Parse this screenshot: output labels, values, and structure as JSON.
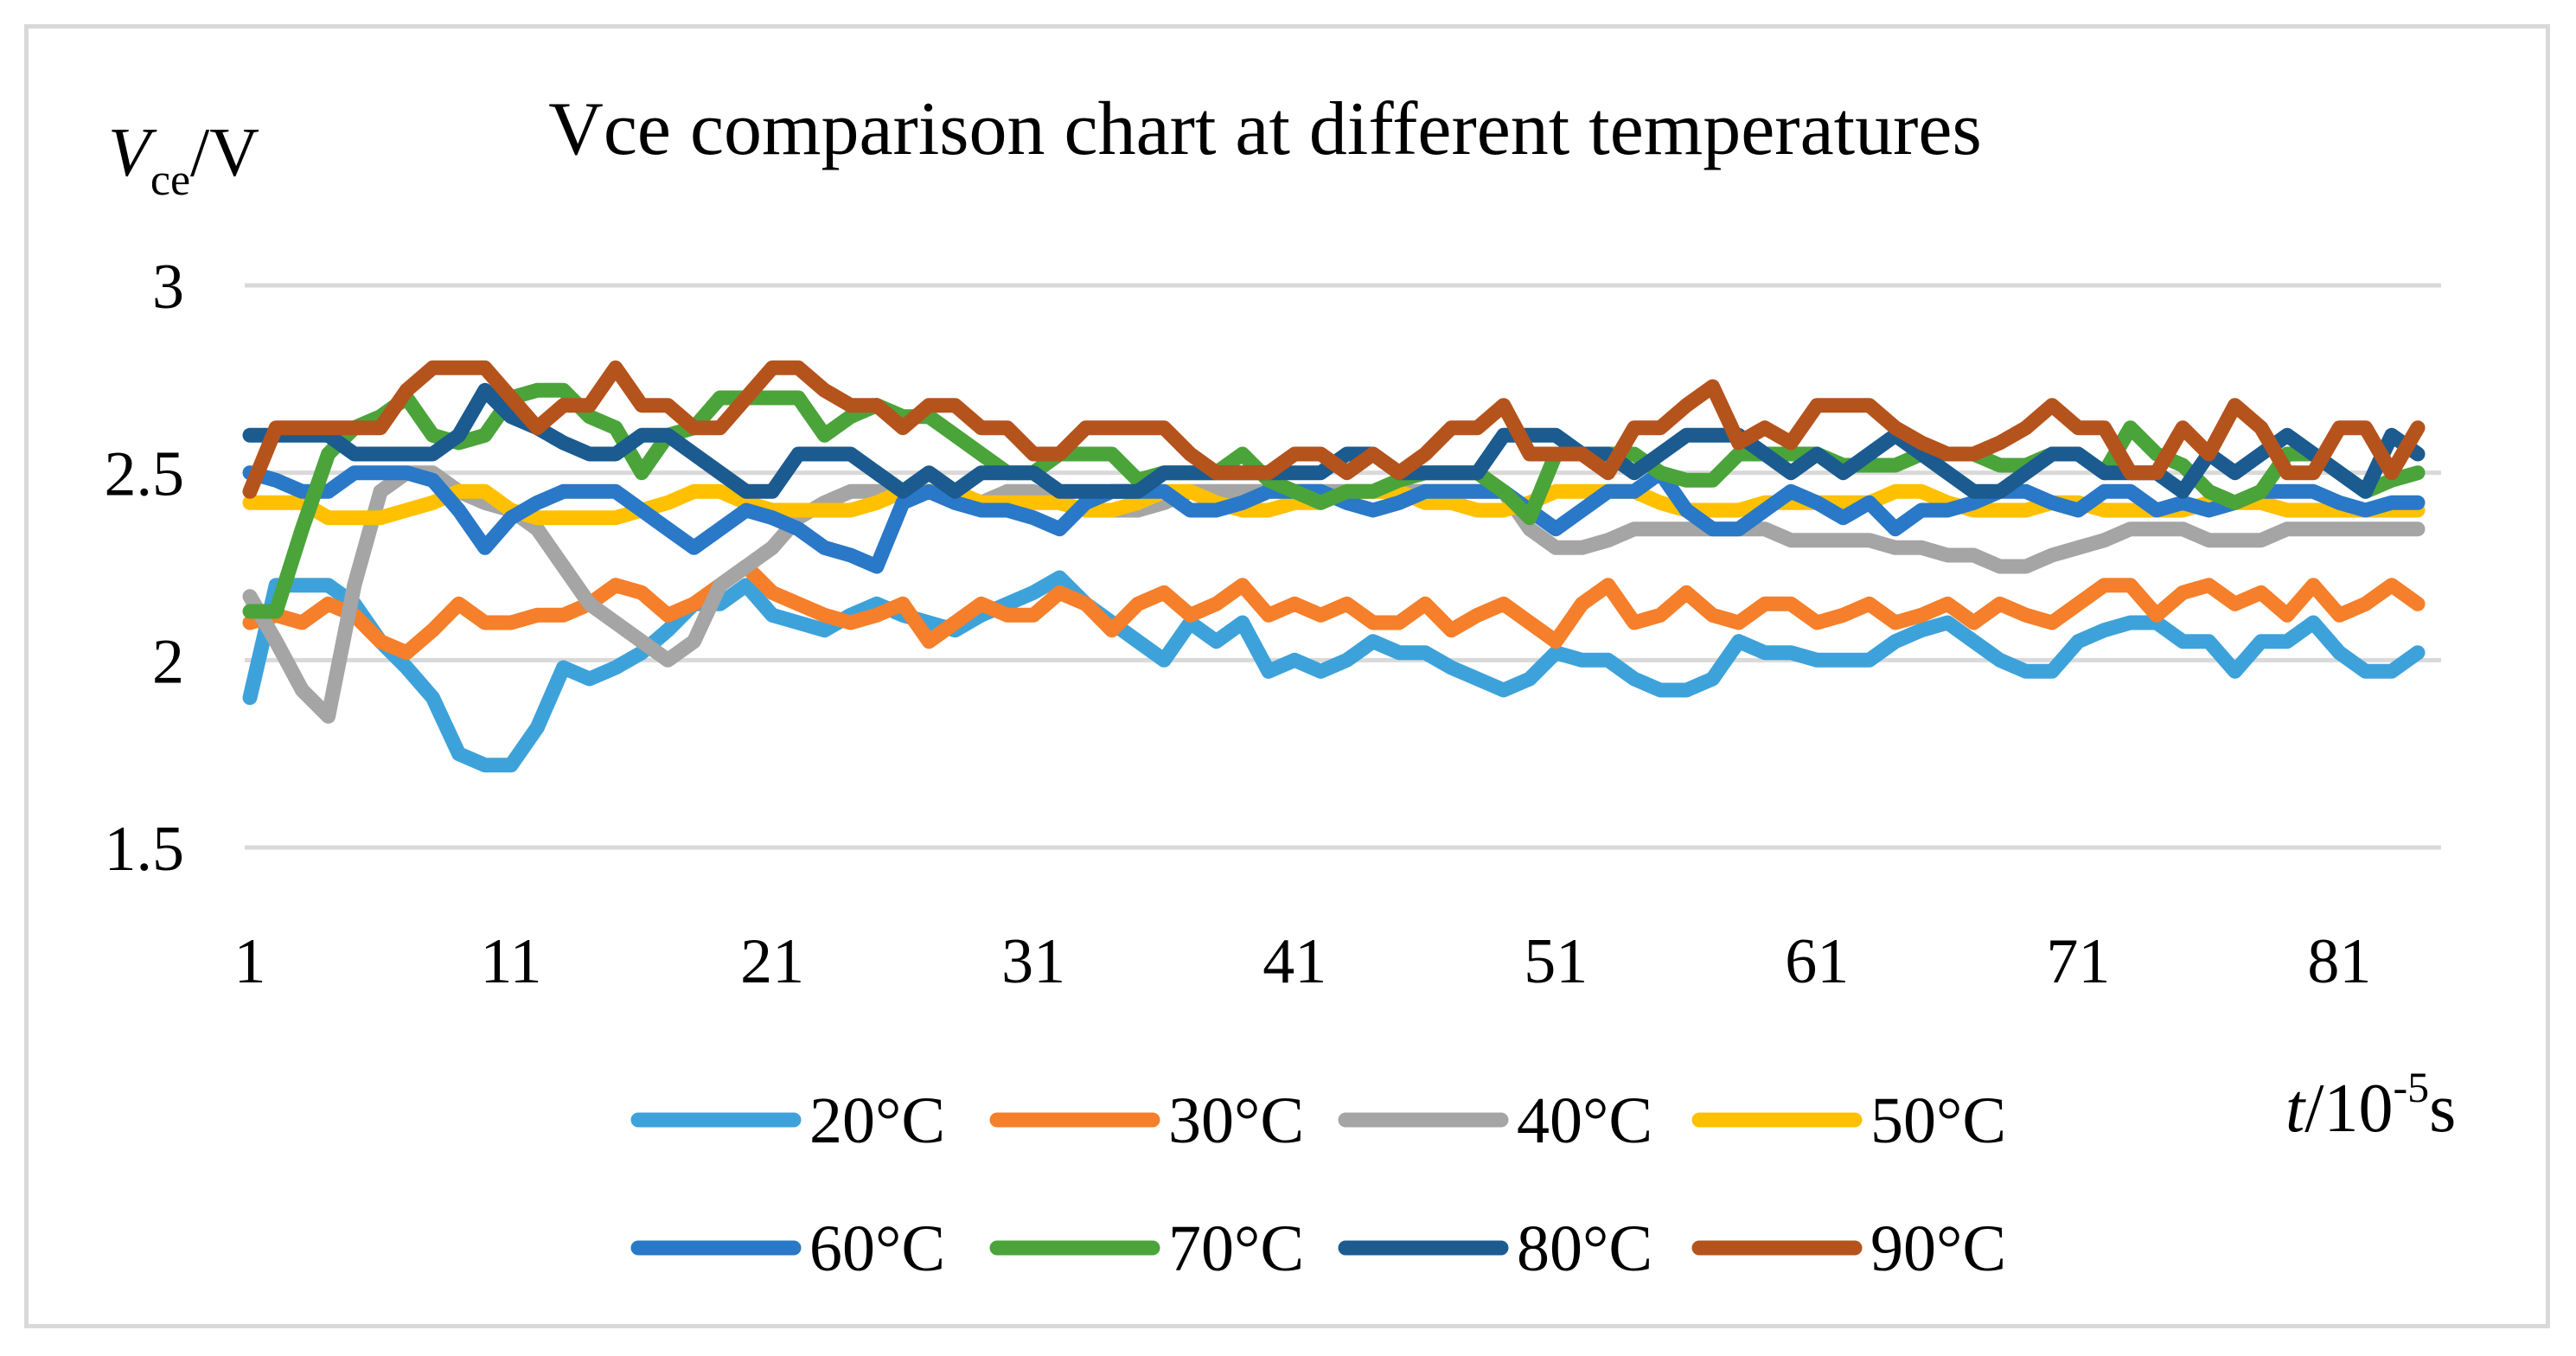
{
  "chart_data": {
    "type": "line",
    "title": "Vce comparison chart at different temperatures",
    "ylabel": {
      "main": "V",
      "sub": "ce",
      "unit": "/V"
    },
    "xlabel": {
      "main": "t",
      "unit": "/10",
      "exp": "-5",
      "suffix": "s"
    },
    "ylim": [
      1.5,
      3
    ],
    "yticks": [
      "1.5",
      "2",
      "2.5",
      "3"
    ],
    "xlim": [
      1,
      84
    ],
    "xticks": [
      "1",
      "11",
      "21",
      "31",
      "41",
      "51",
      "61",
      "71",
      "81"
    ],
    "grid": true,
    "legend_position": "bottom",
    "series": [
      {
        "name": "20°C",
        "color": "#3ea2da",
        "values": [
          1.9,
          2.2,
          2.2,
          2.2,
          2.15,
          2.05,
          1.98,
          1.9,
          1.75,
          1.72,
          1.72,
          1.82,
          1.98,
          1.95,
          1.98,
          2.02,
          2.08,
          2.15,
          2.15,
          2.2,
          2.12,
          2.1,
          2.08,
          2.12,
          2.15,
          2.12,
          2.1,
          2.08,
          2.12,
          2.15,
          2.18,
          2.22,
          2.15,
          2.1,
          2.05,
          2.0,
          2.1,
          2.05,
          2.1,
          1.97,
          2.0,
          1.97,
          2.0,
          2.05,
          2.02,
          2.02,
          1.98,
          1.95,
          1.92,
          1.95,
          2.02,
          2.0,
          2.0,
          1.95,
          1.92,
          1.92,
          1.95,
          2.05,
          2.02,
          2.02,
          2.0,
          2.0,
          2.0,
          2.05,
          2.08,
          2.1,
          2.05,
          2.0,
          1.97,
          1.97,
          2.05,
          2.08,
          2.1,
          2.1,
          2.05,
          2.05,
          1.97,
          2.05,
          2.05,
          2.1,
          2.02,
          1.97,
          1.97,
          2.02
        ]
      },
      {
        "name": "30°C",
        "color": "#f57f2a",
        "values": [
          2.1,
          2.12,
          2.1,
          2.15,
          2.12,
          2.05,
          2.02,
          2.08,
          2.15,
          2.1,
          2.1,
          2.12,
          2.12,
          2.15,
          2.2,
          2.18,
          2.12,
          2.15,
          2.2,
          2.25,
          2.18,
          2.15,
          2.12,
          2.1,
          2.12,
          2.15,
          2.05,
          2.1,
          2.15,
          2.12,
          2.12,
          2.18,
          2.15,
          2.08,
          2.15,
          2.18,
          2.12,
          2.15,
          2.2,
          2.12,
          2.15,
          2.12,
          2.15,
          2.1,
          2.1,
          2.15,
          2.08,
          2.12,
          2.15,
          2.1,
          2.05,
          2.15,
          2.2,
          2.1,
          2.12,
          2.18,
          2.12,
          2.1,
          2.15,
          2.15,
          2.1,
          2.12,
          2.15,
          2.1,
          2.12,
          2.15,
          2.1,
          2.15,
          2.12,
          2.1,
          2.15,
          2.2,
          2.2,
          2.12,
          2.18,
          2.2,
          2.15,
          2.18,
          2.12,
          2.2,
          2.12,
          2.15,
          2.2,
          2.15
        ]
      },
      {
        "name": "40°C",
        "color": "#a5a5a5",
        "values": [
          2.17,
          2.05,
          1.92,
          1.85,
          2.2,
          2.45,
          2.5,
          2.5,
          2.45,
          2.42,
          2.4,
          2.35,
          2.25,
          2.15,
          2.1,
          2.05,
          2.0,
          2.05,
          2.2,
          2.25,
          2.3,
          2.38,
          2.42,
          2.45,
          2.45,
          2.45,
          2.45,
          2.42,
          2.42,
          2.45,
          2.45,
          2.42,
          2.4,
          2.4,
          2.4,
          2.42,
          2.45,
          2.45,
          2.45,
          2.45,
          2.45,
          2.45,
          2.45,
          2.45,
          2.45,
          2.45,
          2.45,
          2.45,
          2.45,
          2.35,
          2.3,
          2.3,
          2.32,
          2.35,
          2.35,
          2.35,
          2.35,
          2.35,
          2.35,
          2.32,
          2.32,
          2.32,
          2.32,
          2.3,
          2.3,
          2.28,
          2.28,
          2.25,
          2.25,
          2.28,
          2.3,
          2.32,
          2.35,
          2.35,
          2.35,
          2.32,
          2.32,
          2.32,
          2.35,
          2.35,
          2.35,
          2.35,
          2.35,
          2.35
        ]
      },
      {
        "name": "50°C",
        "color": "#ffc000",
        "values": [
          2.42,
          2.42,
          2.42,
          2.38,
          2.38,
          2.38,
          2.4,
          2.42,
          2.45,
          2.45,
          2.4,
          2.38,
          2.38,
          2.38,
          2.38,
          2.4,
          2.42,
          2.45,
          2.45,
          2.42,
          2.4,
          2.4,
          2.4,
          2.4,
          2.42,
          2.45,
          2.45,
          2.45,
          2.42,
          2.42,
          2.42,
          2.42,
          2.4,
          2.4,
          2.42,
          2.45,
          2.45,
          2.42,
          2.4,
          2.4,
          2.42,
          2.42,
          2.45,
          2.45,
          2.45,
          2.42,
          2.42,
          2.4,
          2.4,
          2.42,
          2.45,
          2.45,
          2.45,
          2.45,
          2.42,
          2.4,
          2.4,
          2.4,
          2.42,
          2.42,
          2.42,
          2.42,
          2.42,
          2.45,
          2.45,
          2.42,
          2.4,
          2.4,
          2.4,
          2.42,
          2.42,
          2.4,
          2.4,
          2.4,
          2.4,
          2.42,
          2.42,
          2.42,
          2.4,
          2.4,
          2.4,
          2.4,
          2.4,
          2.4
        ]
      },
      {
        "name": "60°C",
        "color": "#2a78c8",
        "values": [
          2.5,
          2.48,
          2.45,
          2.45,
          2.5,
          2.5,
          2.5,
          2.48,
          2.4,
          2.3,
          2.38,
          2.42,
          2.45,
          2.45,
          2.45,
          2.4,
          2.35,
          2.3,
          2.35,
          2.4,
          2.38,
          2.35,
          2.3,
          2.28,
          2.25,
          2.42,
          2.45,
          2.42,
          2.4,
          2.4,
          2.38,
          2.35,
          2.42,
          2.45,
          2.45,
          2.45,
          2.4,
          2.4,
          2.42,
          2.45,
          2.45,
          2.45,
          2.42,
          2.4,
          2.42,
          2.45,
          2.45,
          2.45,
          2.45,
          2.4,
          2.35,
          2.4,
          2.45,
          2.45,
          2.5,
          2.4,
          2.35,
          2.35,
          2.4,
          2.45,
          2.42,
          2.38,
          2.42,
          2.35,
          2.4,
          2.4,
          2.42,
          2.45,
          2.45,
          2.42,
          2.4,
          2.45,
          2.45,
          2.4,
          2.42,
          2.4,
          2.42,
          2.45,
          2.45,
          2.45,
          2.42,
          2.4,
          2.42,
          2.42
        ]
      },
      {
        "name": "70°C",
        "color": "#4aa43a",
        "values": [
          2.13,
          2.13,
          2.35,
          2.55,
          2.62,
          2.65,
          2.7,
          2.6,
          2.58,
          2.6,
          2.7,
          2.72,
          2.72,
          2.65,
          2.62,
          2.5,
          2.6,
          2.62,
          2.7,
          2.7,
          2.7,
          2.7,
          2.6,
          2.65,
          2.68,
          2.65,
          2.65,
          2.6,
          2.55,
          2.5,
          2.5,
          2.55,
          2.55,
          2.55,
          2.48,
          2.5,
          2.5,
          2.5,
          2.55,
          2.48,
          2.45,
          2.42,
          2.45,
          2.45,
          2.48,
          2.5,
          2.5,
          2.5,
          2.45,
          2.38,
          2.55,
          2.55,
          2.55,
          2.55,
          2.5,
          2.48,
          2.48,
          2.55,
          2.55,
          2.55,
          2.55,
          2.52,
          2.52,
          2.52,
          2.55,
          2.55,
          2.55,
          2.52,
          2.52,
          2.55,
          2.55,
          2.5,
          2.62,
          2.55,
          2.52,
          2.45,
          2.42,
          2.45,
          2.55,
          2.55,
          2.5,
          2.45,
          2.48,
          2.5
        ]
      },
      {
        "name": "80°C",
        "color": "#1b5b90",
        "values": [
          2.6,
          2.6,
          2.6,
          2.6,
          2.55,
          2.55,
          2.55,
          2.55,
          2.6,
          2.72,
          2.65,
          2.62,
          2.58,
          2.55,
          2.55,
          2.6,
          2.6,
          2.55,
          2.5,
          2.45,
          2.45,
          2.55,
          2.55,
          2.55,
          2.5,
          2.45,
          2.5,
          2.45,
          2.5,
          2.5,
          2.5,
          2.45,
          2.45,
          2.45,
          2.45,
          2.5,
          2.5,
          2.5,
          2.5,
          2.5,
          2.5,
          2.5,
          2.55,
          2.55,
          2.5,
          2.5,
          2.5,
          2.5,
          2.6,
          2.6,
          2.6,
          2.55,
          2.55,
          2.5,
          2.55,
          2.6,
          2.6,
          2.6,
          2.55,
          2.5,
          2.55,
          2.5,
          2.55,
          2.6,
          2.55,
          2.5,
          2.45,
          2.45,
          2.5,
          2.55,
          2.55,
          2.5,
          2.5,
          2.5,
          2.45,
          2.55,
          2.5,
          2.55,
          2.6,
          2.55,
          2.5,
          2.45,
          2.6,
          2.55
        ]
      },
      {
        "name": "90°C",
        "color": "#b5531c",
        "values": [
          2.45,
          2.62,
          2.62,
          2.62,
          2.62,
          2.62,
          2.72,
          2.78,
          2.78,
          2.78,
          2.7,
          2.62,
          2.68,
          2.68,
          2.78,
          2.68,
          2.68,
          2.62,
          2.62,
          2.7,
          2.78,
          2.78,
          2.72,
          2.68,
          2.68,
          2.62,
          2.68,
          2.68,
          2.62,
          2.62,
          2.55,
          2.55,
          2.62,
          2.62,
          2.62,
          2.62,
          2.55,
          2.5,
          2.5,
          2.5,
          2.55,
          2.55,
          2.5,
          2.55,
          2.5,
          2.55,
          2.62,
          2.62,
          2.68,
          2.55,
          2.55,
          2.55,
          2.5,
          2.62,
          2.62,
          2.68,
          2.73,
          2.58,
          2.62,
          2.58,
          2.68,
          2.68,
          2.68,
          2.62,
          2.58,
          2.55,
          2.55,
          2.58,
          2.62,
          2.68,
          2.62,
          2.62,
          2.5,
          2.5,
          2.62,
          2.55,
          2.68,
          2.62,
          2.5,
          2.5,
          2.62,
          2.62,
          2.5,
          2.62
        ]
      }
    ]
  }
}
